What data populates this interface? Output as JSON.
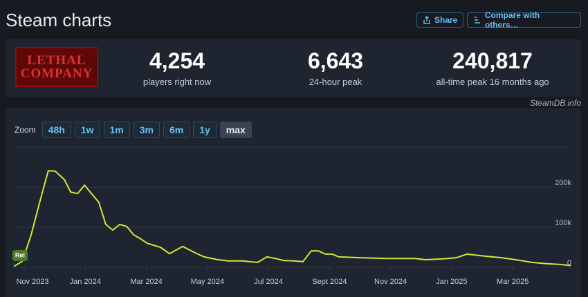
{
  "header": {
    "title": "Steam charts",
    "buttons": [
      "Share",
      "Compare with others…"
    ]
  },
  "game": {
    "logo_lines": [
      "LETHAL",
      "COMPANY"
    ]
  },
  "stats": [
    {
      "value": "4,254",
      "label": "players right now"
    },
    {
      "value": "6,643",
      "label": "24-hour peak"
    },
    {
      "value": "240,817",
      "label": "all-time peak 16 months ago"
    }
  ],
  "credit": "SteamDB.info",
  "zoom": {
    "label": "Zoom",
    "options": [
      "48h",
      "1w",
      "1m",
      "3m",
      "6m",
      "1y",
      "max"
    ],
    "selected": 6
  },
  "chart_data": {
    "type": "line",
    "x": [
      2023.805,
      2023.828,
      2023.852,
      2023.877,
      2023.899,
      2023.918,
      2023.943,
      2023.96,
      2023.979,
      2023.998,
      2024.017,
      2024.037,
      2024.056,
      2024.075,
      2024.094,
      2024.113,
      2024.132,
      2024.151,
      2024.169,
      2024.205,
      2024.23,
      2024.266,
      2024.296,
      2024.324,
      2024.362,
      2024.39,
      2024.428,
      2024.47,
      2024.496,
      2024.519,
      2024.541,
      2024.57,
      2024.594,
      2024.617,
      2024.636,
      2024.655,
      2024.674,
      2024.692,
      2024.749,
      2024.825,
      2024.9,
      2024.928,
      2024.976,
      2025.013,
      2025.042,
      2025.089,
      2025.136,
      2025.174,
      2025.221,
      2025.259,
      2025.297,
      2025.325
    ],
    "series": [
      {
        "color": "#cfe83a",
        "values": [
          2000,
          15000,
          80000,
          167000,
          241000,
          240000,
          219000,
          188000,
          184000,
          205000,
          184000,
          162000,
          107000,
          93000,
          107000,
          102000,
          81000,
          71000,
          60000,
          50000,
          34000,
          52000,
          38000,
          26000,
          19000,
          16000,
          16000,
          12000,
          26000,
          22000,
          17000,
          16000,
          14000,
          41000,
          41000,
          33000,
          33000,
          26000,
          24000,
          22000,
          22000,
          19000,
          21000,
          24000,
          33000,
          28000,
          24000,
          19000,
          12000,
          9000,
          7000,
          4254
        ]
      }
    ],
    "xlim": [
      2023.805,
      2025.325
    ],
    "ylim": [
      0,
      300000
    ],
    "xticks": [
      {
        "value": 2023.8333,
        "label": "Nov 2023"
      },
      {
        "value": 2024.0,
        "label": "Jan 2024"
      },
      {
        "value": 2024.1667,
        "label": "Mar 2024"
      },
      {
        "value": 2024.3333,
        "label": "May 2024"
      },
      {
        "value": 2024.5,
        "label": "Jul 2024"
      },
      {
        "value": 2024.6667,
        "label": "Sept 2024"
      },
      {
        "value": 2024.8333,
        "label": "Nov 2024"
      },
      {
        "value": 2025.0,
        "label": "Jan 2025"
      },
      {
        "value": 2025.1667,
        "label": "Mar 2025"
      }
    ],
    "yticks": [
      0,
      {
        "value": 100000,
        "label": "100k"
      },
      {
        "value": 200000,
        "label": "200k"
      }
    ],
    "grid": true,
    "annotations": [
      {
        "text": "Rel",
        "x": 2023.82
      }
    ]
  }
}
